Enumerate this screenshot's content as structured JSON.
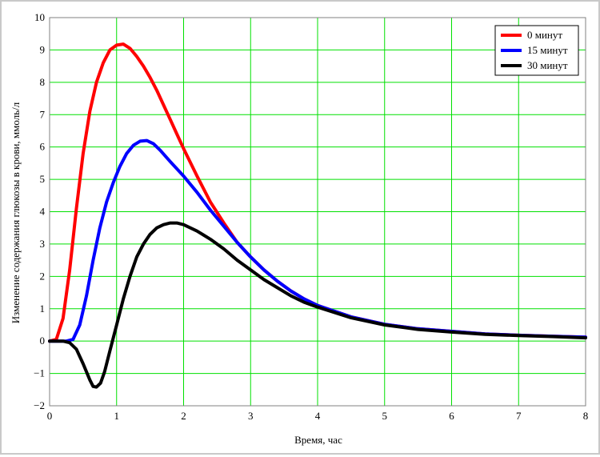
{
  "chart_data": {
    "type": "line",
    "title": "",
    "xlabel": "Время, час",
    "ylabel": "Изменение содержания глюкозы в крови, ммоль/л",
    "xlim": [
      0,
      8
    ],
    "ylim": [
      -2,
      10
    ],
    "x_ticks": [
      0,
      1,
      2,
      3,
      4,
      5,
      6,
      7,
      8
    ],
    "y_ticks": [
      -2,
      -1,
      0,
      1,
      2,
      3,
      4,
      5,
      6,
      7,
      8,
      9,
      10
    ],
    "grid": true,
    "grid_color": "#00e000",
    "legend_position": "top-right",
    "series": [
      {
        "name": "0 минут",
        "color": "#ff0000",
        "points": [
          [
            0,
            0
          ],
          [
            0.1,
            0.05
          ],
          [
            0.2,
            0.7
          ],
          [
            0.3,
            2.2
          ],
          [
            0.4,
            4.1
          ],
          [
            0.5,
            5.8
          ],
          [
            0.6,
            7.1
          ],
          [
            0.7,
            8.0
          ],
          [
            0.8,
            8.6
          ],
          [
            0.9,
            9.0
          ],
          [
            1.0,
            9.15
          ],
          [
            1.1,
            9.18
          ],
          [
            1.2,
            9.05
          ],
          [
            1.3,
            8.8
          ],
          [
            1.4,
            8.5
          ],
          [
            1.5,
            8.15
          ],
          [
            1.6,
            7.75
          ],
          [
            1.7,
            7.3
          ],
          [
            1.8,
            6.85
          ],
          [
            1.9,
            6.4
          ],
          [
            2.0,
            5.95
          ],
          [
            2.2,
            5.1
          ],
          [
            2.4,
            4.3
          ],
          [
            2.6,
            3.65
          ],
          [
            2.8,
            3.05
          ],
          [
            3.0,
            2.6
          ],
          [
            3.2,
            2.2
          ],
          [
            3.4,
            1.85
          ],
          [
            3.6,
            1.55
          ],
          [
            3.8,
            1.3
          ],
          [
            4.0,
            1.1
          ],
          [
            4.5,
            0.75
          ],
          [
            5.0,
            0.52
          ],
          [
            5.5,
            0.38
          ],
          [
            6.0,
            0.3
          ],
          [
            6.5,
            0.22
          ],
          [
            7.0,
            0.18
          ],
          [
            7.5,
            0.15
          ],
          [
            8.0,
            0.12
          ]
        ]
      },
      {
        "name": "15 минут",
        "color": "#0000ff",
        "points": [
          [
            0,
            0
          ],
          [
            0.25,
            0
          ],
          [
            0.35,
            0.05
          ],
          [
            0.45,
            0.5
          ],
          [
            0.55,
            1.4
          ],
          [
            0.65,
            2.5
          ],
          [
            0.75,
            3.5
          ],
          [
            0.85,
            4.3
          ],
          [
            0.95,
            4.9
          ],
          [
            1.05,
            5.4
          ],
          [
            1.15,
            5.8
          ],
          [
            1.25,
            6.05
          ],
          [
            1.35,
            6.18
          ],
          [
            1.45,
            6.2
          ],
          [
            1.55,
            6.1
          ],
          [
            1.65,
            5.9
          ],
          [
            1.8,
            5.55
          ],
          [
            2.0,
            5.1
          ],
          [
            2.2,
            4.6
          ],
          [
            2.4,
            4.05
          ],
          [
            2.6,
            3.55
          ],
          [
            2.8,
            3.05
          ],
          [
            3.0,
            2.6
          ],
          [
            3.2,
            2.2
          ],
          [
            3.4,
            1.85
          ],
          [
            3.6,
            1.55
          ],
          [
            3.8,
            1.3
          ],
          [
            4.0,
            1.1
          ],
          [
            4.5,
            0.75
          ],
          [
            5.0,
            0.52
          ],
          [
            5.5,
            0.38
          ],
          [
            6.0,
            0.3
          ],
          [
            6.5,
            0.22
          ],
          [
            7.0,
            0.18
          ],
          [
            7.5,
            0.15
          ],
          [
            8.0,
            0.12
          ]
        ]
      },
      {
        "name": "30 минут",
        "color": "#000000",
        "points": [
          [
            0,
            0
          ],
          [
            0.2,
            0
          ],
          [
            0.3,
            -0.05
          ],
          [
            0.4,
            -0.25
          ],
          [
            0.5,
            -0.7
          ],
          [
            0.6,
            -1.2
          ],
          [
            0.65,
            -1.4
          ],
          [
            0.7,
            -1.42
          ],
          [
            0.76,
            -1.3
          ],
          [
            0.82,
            -0.95
          ],
          [
            0.9,
            -0.3
          ],
          [
            1.0,
            0.5
          ],
          [
            1.1,
            1.3
          ],
          [
            1.2,
            2.0
          ],
          [
            1.3,
            2.6
          ],
          [
            1.4,
            3.0
          ],
          [
            1.5,
            3.3
          ],
          [
            1.6,
            3.5
          ],
          [
            1.7,
            3.6
          ],
          [
            1.8,
            3.65
          ],
          [
            1.9,
            3.65
          ],
          [
            2.0,
            3.6
          ],
          [
            2.2,
            3.4
          ],
          [
            2.4,
            3.15
          ],
          [
            2.6,
            2.85
          ],
          [
            2.8,
            2.5
          ],
          [
            3.0,
            2.2
          ],
          [
            3.2,
            1.9
          ],
          [
            3.4,
            1.65
          ],
          [
            3.6,
            1.4
          ],
          [
            3.8,
            1.2
          ],
          [
            4.0,
            1.05
          ],
          [
            4.5,
            0.72
          ],
          [
            5.0,
            0.5
          ],
          [
            5.5,
            0.36
          ],
          [
            6.0,
            0.28
          ],
          [
            6.5,
            0.21
          ],
          [
            7.0,
            0.17
          ],
          [
            7.5,
            0.14
          ],
          [
            8.0,
            0.1
          ]
        ]
      }
    ]
  }
}
